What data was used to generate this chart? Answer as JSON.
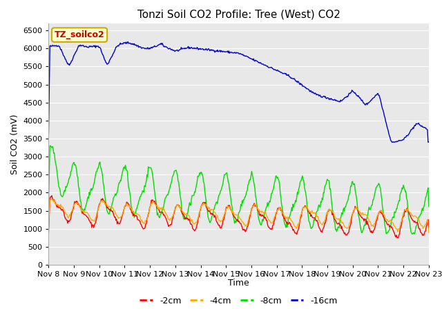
{
  "title": "Tonzi Soil CO2 Profile: Tree (West) CO2",
  "ylabel": "Soil CO2 (mV)",
  "xlabel": "Time",
  "ylim": [
    0,
    6700
  ],
  "yticks": [
    0,
    500,
    1000,
    1500,
    2000,
    2500,
    3000,
    3500,
    4000,
    4500,
    5000,
    5500,
    6000,
    6500
  ],
  "bg_color": "#e8e8e8",
  "legend_label": "TZ_soilco2",
  "legend_box_color": "#ffffcc",
  "legend_box_edge": "#ccaa00",
  "series_colors": {
    "2cm": "#ff0000",
    "4cm": "#ffaa00",
    "8cm": "#00dd00",
    "16cm": "#0000cc"
  },
  "series_labels": {
    "2cm": "-2cm",
    "4cm": "-4cm",
    "8cm": "-8cm",
    "16cm": "-16cm"
  },
  "x_tick_labels": [
    "Nov 8",
    "Nov 9",
    "Nov 10",
    "Nov 11",
    "Nov 12",
    "Nov 13",
    "Nov 14",
    "Nov 15",
    "Nov 16",
    "Nov 17",
    "Nov 18",
    "Nov 19",
    "Nov 20",
    "Nov 21",
    "Nov 22",
    "Nov 23"
  ],
  "title_fontsize": 11,
  "axis_label_fontsize": 9,
  "tick_fontsize": 8
}
